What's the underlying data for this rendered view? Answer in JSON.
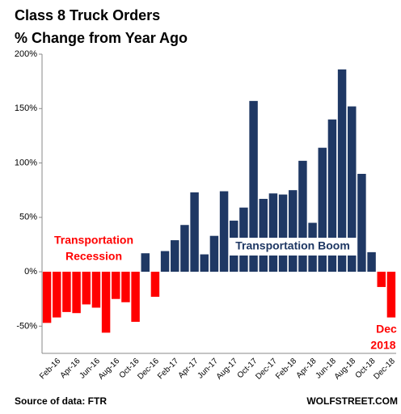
{
  "chart_data": {
    "type": "bar",
    "title": "Class 8 Truck Orders",
    "subtitle": "% Change from Year Ago",
    "categories": [
      null,
      "Feb-16",
      null,
      "Apr-16",
      null,
      "Jun-16",
      null,
      "Aug-16",
      null,
      "Oct-16",
      null,
      "Dec-16",
      null,
      "Feb-17",
      null,
      "Apr-17",
      null,
      "Jun-17",
      null,
      "Aug-17",
      null,
      "Oct-17",
      null,
      "Dec-17",
      null,
      "Feb-18",
      null,
      "Apr-18",
      null,
      "Jun-18",
      null,
      "Aug-18",
      null,
      "Oct-18",
      null,
      "Dec-18"
    ],
    "values": [
      -47,
      -42,
      -37,
      -38,
      -30,
      -33,
      -56,
      -25,
      -28,
      -46,
      17,
      -23,
      19,
      29,
      43,
      73,
      16,
      33,
      74,
      47,
      59,
      157,
      67,
      72,
      71,
      75,
      102,
      45,
      114,
      140,
      186,
      152,
      90,
      18,
      -14,
      -42
    ],
    "color_positive": "#1f3864",
    "color_negative": "#ff0000",
    "ylim": [
      -75,
      200
    ],
    "yticks": [
      {
        "value": -50,
        "label": "-50%"
      },
      {
        "value": 0,
        "label": "0%"
      },
      {
        "value": 50,
        "label": "50%"
      },
      {
        "value": 100,
        "label": "100%"
      },
      {
        "value": 150,
        "label": "150%"
      },
      {
        "value": 200,
        "label": "200%"
      }
    ],
    "annotations": {
      "recession_line1": "Transportation",
      "recession_line2": "Recession",
      "boom": "Transportation Boom",
      "last_line1": "Dec",
      "last_line2": "2018"
    },
    "source": "Source of data: FTR",
    "credit": "WOLFSTREET.COM"
  }
}
